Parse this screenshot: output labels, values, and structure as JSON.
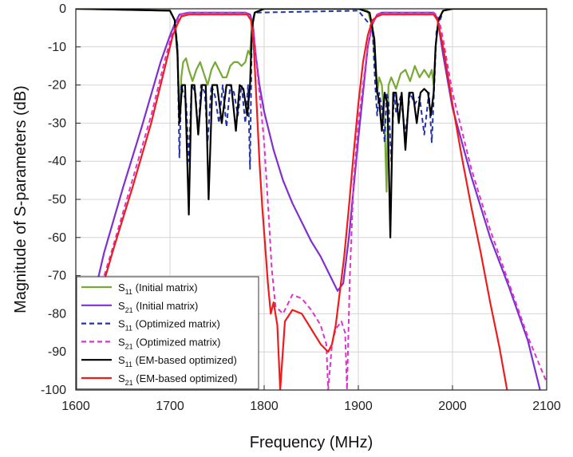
{
  "chart_data": {
    "type": "line",
    "xlabel": "Frequency (MHz)",
    "ylabel": "Magnitude of S-parameters (dB)",
    "xlim": [
      1600,
      2100
    ],
    "ylim": [
      -100,
      0
    ],
    "xticks": [
      1600,
      1700,
      1800,
      1900,
      2000,
      2100
    ],
    "yticks": [
      0,
      -10,
      -20,
      -30,
      -40,
      -50,
      -60,
      -70,
      -80,
      -90,
      -100
    ],
    "grid": true,
    "legend_position": "bottom-left",
    "series": [
      {
        "name": "S11 (Initial matrix)",
        "label_main": "S",
        "label_sub": "11",
        "label_rest": " (Initial matrix)",
        "color": "#77aa33",
        "dash": "solid",
        "x": [
          1600,
          1700,
          1705,
          1708,
          1710,
          1712,
          1714,
          1717,
          1720,
          1724,
          1728,
          1732,
          1736,
          1740,
          1744,
          1748,
          1752,
          1756,
          1760,
          1764,
          1768,
          1772,
          1776,
          1780,
          1783,
          1785,
          1787,
          1790,
          1800,
          1900,
          1910,
          1915,
          1918,
          1920,
          1922,
          1925,
          1928,
          1930,
          1932,
          1935,
          1940,
          1945,
          1950,
          1955,
          1960,
          1965,
          1970,
          1975,
          1978,
          1980,
          1982,
          1985,
          1990,
          2000,
          2100
        ],
        "y": [
          0,
          -0.5,
          -3,
          -10,
          -30,
          -18,
          -14,
          -13,
          -16,
          -19,
          -16,
          -14,
          -17,
          -20,
          -16,
          -14,
          -16,
          -18,
          -18,
          -15,
          -14,
          -14,
          -15,
          -14,
          -11,
          -12,
          -4,
          -1,
          0,
          0,
          -0.5,
          -5,
          -15,
          -22,
          -18,
          -20,
          -30,
          -48,
          -20,
          -18,
          -21,
          -17,
          -16,
          -19,
          -15,
          -18,
          -16,
          -18,
          -16,
          -20,
          -10,
          -3,
          -0.5,
          0,
          0
        ]
      },
      {
        "name": "S21 (Initial matrix)",
        "label_main": "S",
        "label_sub": "21",
        "label_rest": " (Initial matrix)",
        "color": "#7f2fcf",
        "dash": "solid",
        "x": [
          1615,
          1630,
          1650,
          1670,
          1690,
          1700,
          1705,
          1710,
          1720,
          1780,
          1785,
          1788,
          1791,
          1795,
          1800,
          1810,
          1820,
          1830,
          1840,
          1850,
          1860,
          1870,
          1878,
          1884,
          1890,
          1900,
          1910,
          1915,
          1920,
          1925,
          1980,
          1984,
          1990,
          2000,
          2020,
          2040,
          2060,
          2080,
          2093
        ],
        "y": [
          -80,
          -64,
          -47,
          -31,
          -14,
          -7,
          -4,
          -1.5,
          -1,
          -1,
          -1.5,
          -4,
          -12,
          -20,
          -27,
          -37,
          -45,
          -51,
          -56,
          -61,
          -65,
          -70,
          -74,
          -72,
          -60,
          -34,
          -10,
          -4,
          -1.5,
          -1,
          -1,
          -2.5,
          -12,
          -26,
          -44,
          -60,
          -73,
          -87,
          -100
        ]
      },
      {
        "name": "S11 (Optimized matrix)",
        "label_main": "S",
        "label_sub": "11",
        "label_rest": " (Optimized matrix)",
        "color": "#2233aa",
        "dash": "dashed",
        "x": [
          1700,
          1705,
          1708,
          1710,
          1712,
          1714,
          1717,
          1720,
          1723,
          1727,
          1730,
          1733,
          1737,
          1740,
          1744,
          1748,
          1752,
          1756,
          1760,
          1764,
          1768,
          1772,
          1776,
          1780,
          1783,
          1785,
          1787,
          1790,
          1900,
          1915,
          1918,
          1920,
          1922,
          1925,
          1928,
          1930,
          1932,
          1935,
          1938,
          1940,
          1945,
          1950,
          1955,
          1960,
          1965,
          1970,
          1975,
          1978,
          1980,
          1983,
          1990
        ],
        "y": [
          -0.5,
          -3,
          -10,
          -39,
          -20,
          -22,
          -24,
          -40,
          -20,
          -22,
          -33,
          -20,
          -22,
          -35,
          -20,
          -23,
          -30,
          -20,
          -31,
          -20,
          -22,
          -28,
          -20,
          -30,
          -20,
          -42,
          -4,
          -1,
          -0.5,
          -5,
          -20,
          -28,
          -22,
          -26,
          -35,
          -22,
          -24,
          -40,
          -22,
          -27,
          -23,
          -33,
          -22,
          -25,
          -23,
          -33,
          -22,
          -35,
          -24,
          -6,
          -0.5
        ]
      },
      {
        "name": "S21 (Optimized matrix)",
        "label_main": "S",
        "label_sub": "21",
        "label_rest": " (Optimized matrix)",
        "color": "#dd33cc",
        "dash": "dashed",
        "x": [
          1618,
          1640,
          1660,
          1680,
          1695,
          1703,
          1708,
          1712,
          1720,
          1780,
          1785,
          1788,
          1791,
          1795,
          1800,
          1805,
          1808,
          1812,
          1820,
          1830,
          1840,
          1850,
          1860,
          1866,
          1868,
          1872,
          1876,
          1882,
          1886,
          1888,
          1891,
          1895,
          1900,
          1910,
          1915,
          1920,
          1925,
          1980,
          1985,
          1990,
          2000,
          2020,
          2040,
          2060,
          2080,
          2100
        ],
        "y": [
          -80,
          -62,
          -45,
          -28,
          -13,
          -6,
          -3,
          -1.5,
          -1,
          -1,
          -2,
          -5,
          -12,
          -22,
          -35,
          -55,
          -68,
          -78,
          -80,
          -75,
          -76,
          -79,
          -83,
          -88,
          -100,
          -88,
          -84,
          -82,
          -85,
          -100,
          -70,
          -45,
          -30,
          -10,
          -4,
          -1.5,
          -1,
          -1,
          -2,
          -8,
          -22,
          -42,
          -58,
          -72,
          -86,
          -98
        ]
      },
      {
        "name": "S11 (EM-based optimized)",
        "label_main": "S",
        "label_sub": "11",
        "label_rest": " (EM-based optimized)",
        "color": "#000000",
        "dash": "solid",
        "x": [
          1600,
          1700,
          1705,
          1708,
          1710,
          1713,
          1716,
          1720,
          1723,
          1726,
          1730,
          1734,
          1738,
          1741,
          1745,
          1750,
          1755,
          1760,
          1765,
          1770,
          1774,
          1778,
          1782,
          1785,
          1787,
          1790,
          1800,
          1900,
          1912,
          1917,
          1920,
          1922,
          1925,
          1928,
          1931,
          1934,
          1937,
          1940,
          1943,
          1946,
          1950,
          1954,
          1958,
          1962,
          1966,
          1970,
          1974,
          1977,
          1980,
          1982,
          1985,
          1990,
          2000,
          2100
        ],
        "y": [
          0,
          -0.5,
          -3,
          -12,
          -30,
          -20,
          -20,
          -54,
          -20,
          -20,
          -33,
          -20,
          -20,
          -50,
          -20,
          -20,
          -30,
          -20,
          -20,
          -32,
          -20,
          -21,
          -28,
          -20,
          -5,
          -1,
          0,
          0,
          -1,
          -8,
          -22,
          -24,
          -32,
          -22,
          -25,
          -60,
          -22,
          -22,
          -30,
          -22,
          -37,
          -22,
          -22,
          -30,
          -22,
          -21,
          -22,
          -28,
          -22,
          -10,
          -3,
          -0.5,
          0,
          0
        ]
      },
      {
        "name": "S21 (EM-based optimized)",
        "label_main": "S",
        "label_sub": "21",
        "label_rest": " (EM-based optimized)",
        "color": "#ee1c1c",
        "dash": "solid",
        "x": [
          1620,
          1640,
          1660,
          1680,
          1695,
          1703,
          1708,
          1712,
          1720,
          1782,
          1786,
          1789,
          1792,
          1795,
          1798,
          1801,
          1804,
          1807,
          1810,
          1814,
          1817,
          1822,
          1830,
          1840,
          1850,
          1860,
          1868,
          1872,
          1876,
          1880,
          1885,
          1890,
          1895,
          1900,
          1905,
          1910,
          1915,
          1920,
          1925,
          1980,
          1984,
          1990,
          2000,
          2010,
          2020,
          2030,
          2040,
          2050,
          2058
        ],
        "y": [
          -80,
          -63,
          -47,
          -30,
          -15,
          -7,
          -4,
          -2,
          -1.5,
          -1.5,
          -3,
          -10,
          -25,
          -40,
          -52,
          -62,
          -72,
          -80,
          -77,
          -83,
          -100,
          -82,
          -79,
          -80,
          -84,
          -88,
          -90,
          -88,
          -83,
          -75,
          -65,
          -52,
          -38,
          -25,
          -14,
          -7,
          -3,
          -2,
          -1.5,
          -1.5,
          -3,
          -10,
          -25,
          -39,
          -52,
          -64,
          -77,
          -89,
          -100
        ]
      }
    ]
  }
}
